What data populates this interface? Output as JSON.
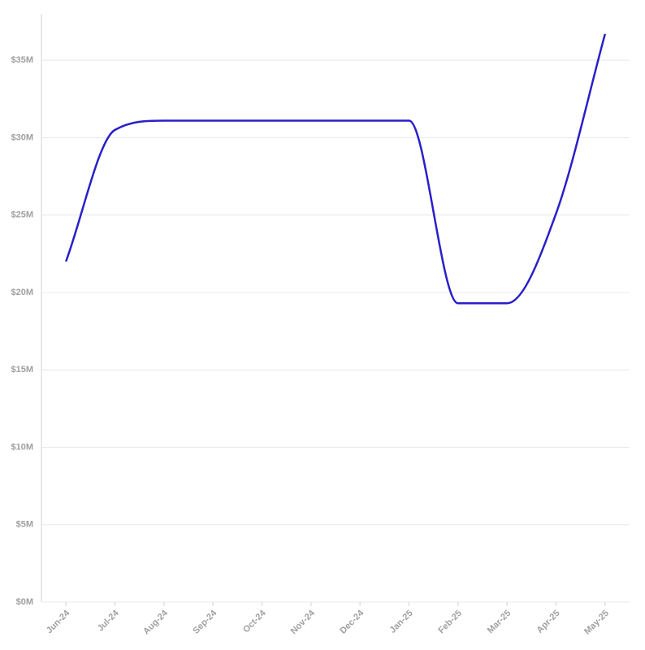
{
  "chart_data": {
    "type": "line",
    "categories": [
      "Jun-24",
      "Jul-24",
      "Aug-24",
      "Sep-24",
      "Oct-24",
      "Nov-24",
      "Dec-24",
      "Jan-25",
      "Feb-25",
      "Mar-25",
      "Apr-25",
      "May-25"
    ],
    "series": [
      {
        "color": "#2a1fc9",
        "values": [
          22.0,
          30.5,
          31.1,
          31.1,
          31.1,
          31.1,
          31.1,
          31.1,
          19.3,
          19.3,
          25.1,
          36.7
        ]
      }
    ],
    "ylim": [
      0,
      38
    ],
    "yticks": [
      {
        "value": 0,
        "label": "$0M"
      },
      {
        "value": 5,
        "label": "$5M"
      },
      {
        "value": 10,
        "label": "$10M"
      },
      {
        "value": 15,
        "label": "$15M"
      },
      {
        "value": 20,
        "label": "$20M"
      },
      {
        "value": 25,
        "label": "$25M"
      },
      {
        "value": 30,
        "label": "$30M"
      },
      {
        "value": 35,
        "label": "$35M"
      }
    ],
    "grid": true,
    "curve": "monotone"
  }
}
